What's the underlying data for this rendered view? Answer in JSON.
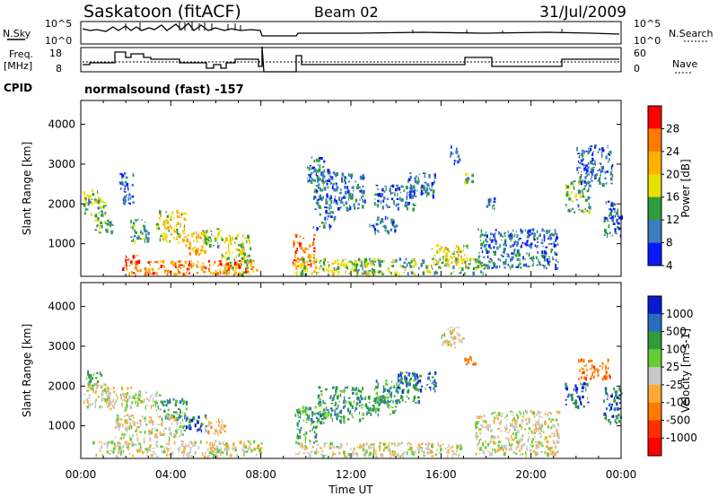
{
  "header": {
    "title": "Saskatoon (fitACF)",
    "beam": "Beam 02",
    "date": "31/Jul/2009"
  },
  "strip_labels": {
    "nsky": "N.Sky",
    "nsearch": "N.Search",
    "freq_line1": "Freq.",
    "freq_line2": "[MHz]",
    "nave": "Nave",
    "cpid": "CPID",
    "cpid_value": "normalsound (fast) -157"
  },
  "strip_ticks": {
    "noise_left": [
      "10^5",
      "10^0"
    ],
    "noise_right": [
      "10^5",
      "10^0"
    ],
    "freq_left": [
      "18",
      "8"
    ],
    "nave_right": [
      "60",
      "0"
    ]
  },
  "chart_data": [
    {
      "type": "heatmap",
      "panel": "power",
      "ylabel": "Slant Range [km]",
      "yticks": [
        1000,
        2000,
        3000,
        4000
      ],
      "ylim": [
        180,
        4600
      ],
      "xlim": [
        0,
        24
      ],
      "colorbar": {
        "label": "Power [dB]",
        "ticks": [
          "28",
          "24",
          "20",
          "16",
          "12",
          "8",
          "4"
        ],
        "colors": [
          "#ff0000",
          "#ff7a00",
          "#ffb000",
          "#e8e000",
          "#2e9c3a",
          "#3c7cc0",
          "#0a1aff"
        ]
      },
      "regions": [
        {
          "x": [
            0.1,
            0.9
          ],
          "y": [
            2050,
            2420
          ],
          "level": 3
        },
        {
          "x": [
            0.1,
            1.1
          ],
          "y": [
            1750,
            2150
          ],
          "level": 2
        },
        {
          "x": [
            0.6,
            1.4
          ],
          "y": [
            1300,
            1850
          ],
          "level": 2
        },
        {
          "x": [
            1.7,
            2.3
          ],
          "y": [
            2000,
            2800
          ],
          "level": 1
        },
        {
          "x": [
            2.2,
            3.0
          ],
          "y": [
            1050,
            1650
          ],
          "level": 2
        },
        {
          "x": [
            3.3,
            4.6
          ],
          "y": [
            1050,
            1850
          ],
          "level": 3
        },
        {
          "x": [
            4.5,
            5.5
          ],
          "y": [
            700,
            1350
          ],
          "level": 4
        },
        {
          "x": [
            5.3,
            6.2
          ],
          "y": [
            900,
            1400
          ],
          "level": 2
        },
        {
          "x": [
            6.2,
            7.6
          ],
          "y": [
            250,
            1250
          ],
          "level": 3
        },
        {
          "x": [
            2.8,
            7.8
          ],
          "y": [
            250,
            600
          ],
          "level": 5
        },
        {
          "x": [
            1.8,
            2.6
          ],
          "y": [
            250,
            750
          ],
          "level": 5
        },
        {
          "x": [
            9.4,
            10.4
          ],
          "y": [
            450,
            1250
          ],
          "level": 5
        },
        {
          "x": [
            9.5,
            13.0
          ],
          "y": [
            250,
            650
          ],
          "level": 3
        },
        {
          "x": [
            10.0,
            10.8
          ],
          "y": [
            2500,
            3200
          ],
          "level": 1
        },
        {
          "x": [
            10.3,
            11.3
          ],
          "y": [
            1400,
            2900
          ],
          "level": 1
        },
        {
          "x": [
            11.3,
            12.6
          ],
          "y": [
            1900,
            2800
          ],
          "level": 1
        },
        {
          "x": [
            12.8,
            14.0
          ],
          "y": [
            1300,
            1700
          ],
          "level": 1
        },
        {
          "x": [
            13.0,
            14.8
          ],
          "y": [
            1900,
            2500
          ],
          "level": 1
        },
        {
          "x": [
            14.5,
            15.7
          ],
          "y": [
            2200,
            2800
          ],
          "level": 1
        },
        {
          "x": [
            12.0,
            18.0
          ],
          "y": [
            250,
            650
          ],
          "level": 2
        },
        {
          "x": [
            15.5,
            17.2
          ],
          "y": [
            500,
            1000
          ],
          "level": 3
        },
        {
          "x": [
            17.6,
            21.2
          ],
          "y": [
            400,
            1400
          ],
          "level": 1
        },
        {
          "x": [
            17.0,
            17.4
          ],
          "y": [
            2500,
            2800
          ],
          "level": 2
        },
        {
          "x": [
            21.5,
            22.6
          ],
          "y": [
            1800,
            2600
          ],
          "level": 2
        },
        {
          "x": [
            22.0,
            23.6
          ],
          "y": [
            2500,
            3500
          ],
          "level": 1
        },
        {
          "x": [
            23.2,
            24.0
          ],
          "y": [
            1200,
            2100
          ],
          "level": 1
        },
        {
          "x": [
            16.4,
            16.8
          ],
          "y": [
            3000,
            3500
          ],
          "level": 1
        },
        {
          "x": [
            18.0,
            18.4
          ],
          "y": [
            1900,
            2200
          ],
          "level": 1
        }
      ]
    },
    {
      "type": "heatmap",
      "panel": "velocity",
      "ylabel": "Slant Range [km]",
      "xlabel": "Time UT",
      "yticks": [
        1000,
        2000,
        3000,
        4000
      ],
      "ylim": [
        180,
        4600
      ],
      "xlim": [
        0,
        24
      ],
      "xticks": [
        "00:00",
        "04:00",
        "08:00",
        "12:00",
        "16:00",
        "20:00",
        "00:00"
      ],
      "colorbar": {
        "label": "Velocity [m s-1]",
        "ticks": [
          "1000",
          "500",
          "100",
          "25",
          "-25",
          "-100",
          "-500",
          "-1000"
        ],
        "colors": [
          "#0a1ad0",
          "#2a6cc0",
          "#2e9c3a",
          "#66cc33",
          "#c8c8c8",
          "#ffaa33",
          "#ff7a00",
          "#ff3000",
          "#ff0000"
        ]
      },
      "regions": [
        {
          "x": [
            0.1,
            0.9
          ],
          "y": [
            2000,
            2400
          ],
          "level": 6
        },
        {
          "x": [
            0.1,
            1.2
          ],
          "y": [
            1500,
            2100
          ],
          "level": 4
        },
        {
          "x": [
            1.0,
            2.2
          ],
          "y": [
            1400,
            2000
          ],
          "level": 4
        },
        {
          "x": [
            2.2,
            3.5
          ],
          "y": [
            1500,
            1900
          ],
          "level": 4
        },
        {
          "x": [
            3.3,
            4.7
          ],
          "y": [
            1150,
            1700
          ],
          "level": 6
        },
        {
          "x": [
            4.5,
            5.6
          ],
          "y": [
            900,
            1300
          ],
          "level": 7
        },
        {
          "x": [
            5.5,
            6.4
          ],
          "y": [
            800,
            1200
          ],
          "level": 3
        },
        {
          "x": [
            0.5,
            8.0
          ],
          "y": [
            250,
            650
          ],
          "level": 4
        },
        {
          "x": [
            1.5,
            4.5
          ],
          "y": [
            700,
            1300
          ],
          "level": 4
        },
        {
          "x": [
            9.5,
            10.5
          ],
          "y": [
            600,
            1500
          ],
          "level": 6
        },
        {
          "x": [
            10.5,
            12.5
          ],
          "y": [
            1100,
            2000
          ],
          "level": 6
        },
        {
          "x": [
            12.5,
            14.0
          ],
          "y": [
            1300,
            1800
          ],
          "level": 6
        },
        {
          "x": [
            13.0,
            15.0
          ],
          "y": [
            1600,
            2200
          ],
          "level": 6
        },
        {
          "x": [
            14.0,
            15.8
          ],
          "y": [
            1900,
            2400
          ],
          "level": 7
        },
        {
          "x": [
            9.5,
            17.0
          ],
          "y": [
            250,
            600
          ],
          "level": 4
        },
        {
          "x": [
            17.5,
            21.2
          ],
          "y": [
            300,
            1400
          ],
          "level": 4
        },
        {
          "x": [
            17.0,
            17.5
          ],
          "y": [
            2500,
            2800
          ],
          "level": 2
        },
        {
          "x": [
            21.5,
            22.5
          ],
          "y": [
            1500,
            2100
          ],
          "level": 7
        },
        {
          "x": [
            22.0,
            23.5
          ],
          "y": [
            2200,
            2700
          ],
          "level": 2
        },
        {
          "x": [
            23.2,
            24.0
          ],
          "y": [
            1100,
            2000
          ],
          "level": 7
        },
        {
          "x": [
            16.0,
            17.0
          ],
          "y": [
            3000,
            3500
          ],
          "level": 4
        }
      ]
    }
  ]
}
